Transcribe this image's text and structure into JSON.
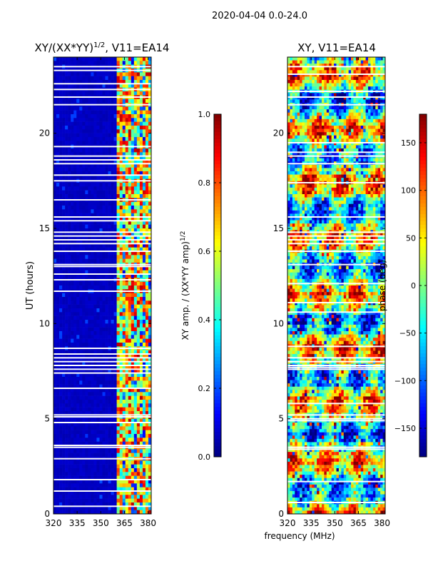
{
  "figure_title": "2020-04-04 0.0-24.0",
  "shared_xlabel": "frequency (MHz)",
  "colors": {
    "jet": [
      "#00007f",
      "#0000ff",
      "#007fff",
      "#00ffff",
      "#7fff7f",
      "#ffff00",
      "#ff7f00",
      "#ff0000",
      "#7f0000"
    ],
    "gap": "#ffffff",
    "axis": "#000000"
  },
  "chart_data": [
    {
      "type": "heatmap",
      "title_main": "XY/(XX*YY)",
      "title_exponent": "1/2",
      "title_suffix": ", V11=EA14",
      "xlabel": "",
      "ylabel": "UT (hours)",
      "xlim": [
        320,
        382
      ],
      "ylim": [
        0,
        24
      ],
      "xticks": [
        "320",
        "335",
        "350",
        "365",
        "380"
      ],
      "xtick_values": [
        320,
        335,
        350,
        365,
        380
      ],
      "yticks": [
        "0",
        "5",
        "10",
        "15",
        "20"
      ],
      "ytick_values": [
        0,
        5,
        10,
        15,
        20
      ],
      "colorbar": {
        "label_main": "XY amp. / (XX*YY amp)",
        "label_exponent": "1/2",
        "range": [
          0,
          1
        ],
        "ticks": [
          "0.0",
          "0.2",
          "0.4",
          "0.6",
          "0.8",
          "1.0"
        ],
        "tick_values": [
          0,
          0.2,
          0.4,
          0.6,
          0.8,
          1.0
        ]
      },
      "description_values": {
        "low_band_mhz": [
          320,
          360
        ],
        "low_band_level": 0.05,
        "high_band_mhz": [
          360,
          382
        ],
        "high_band_level_range": [
          0.1,
          0.95
        ]
      },
      "gaps_ut_hours": [
        0.4,
        1.2,
        1.8,
        2.9,
        3.5,
        3.6,
        4.8,
        5.1,
        5.2,
        6.6,
        7.4,
        7.6,
        7.8,
        8.0,
        8.2,
        8.4,
        8.7,
        11.7,
        12.3,
        12.6,
        13.0,
        13.1,
        13.8,
        14.2,
        14.4,
        14.6,
        14.8,
        15.4,
        15.6,
        16.5,
        17.5,
        17.8,
        18.4,
        18.6,
        18.8,
        19.3,
        21.5,
        21.9,
        22.3,
        22.6,
        23.3,
        23.5
      ]
    },
    {
      "type": "heatmap",
      "title_main": "XY, V11=EA14",
      "xlabel": "frequency (MHz)",
      "ylabel": "",
      "xlim": [
        320,
        382
      ],
      "ylim": [
        0,
        24
      ],
      "xticks": [
        "320",
        "335",
        "350",
        "365",
        "380"
      ],
      "xtick_values": [
        320,
        335,
        350,
        365,
        380
      ],
      "yticks": [
        "0",
        "5",
        "10",
        "15",
        "20"
      ],
      "ytick_values": [
        0,
        5,
        10,
        15,
        20
      ],
      "colorbar": {
        "label": "phase (deg)",
        "range": [
          -180,
          180
        ],
        "ticks": [
          "−150",
          "−100",
          "−50",
          "0",
          "50",
          "100",
          "150"
        ],
        "tick_values": [
          -150,
          -100,
          -50,
          0,
          50,
          100,
          150
        ]
      },
      "gaps_ut_hours": [
        0.6,
        1.7,
        3.4,
        3.5,
        4.9,
        5.0,
        5.2,
        5.8,
        7.6,
        7.7,
        7.8,
        8.0,
        8.2,
        8.8,
        10.6,
        11.1,
        12.1,
        13.1,
        13.8,
        14.2,
        14.4,
        14.6,
        14.8,
        15.6,
        17.4,
        18.4,
        18.8,
        19.0,
        19.5,
        21.5,
        21.9,
        22.2,
        23.1,
        23.5
      ]
    }
  ]
}
